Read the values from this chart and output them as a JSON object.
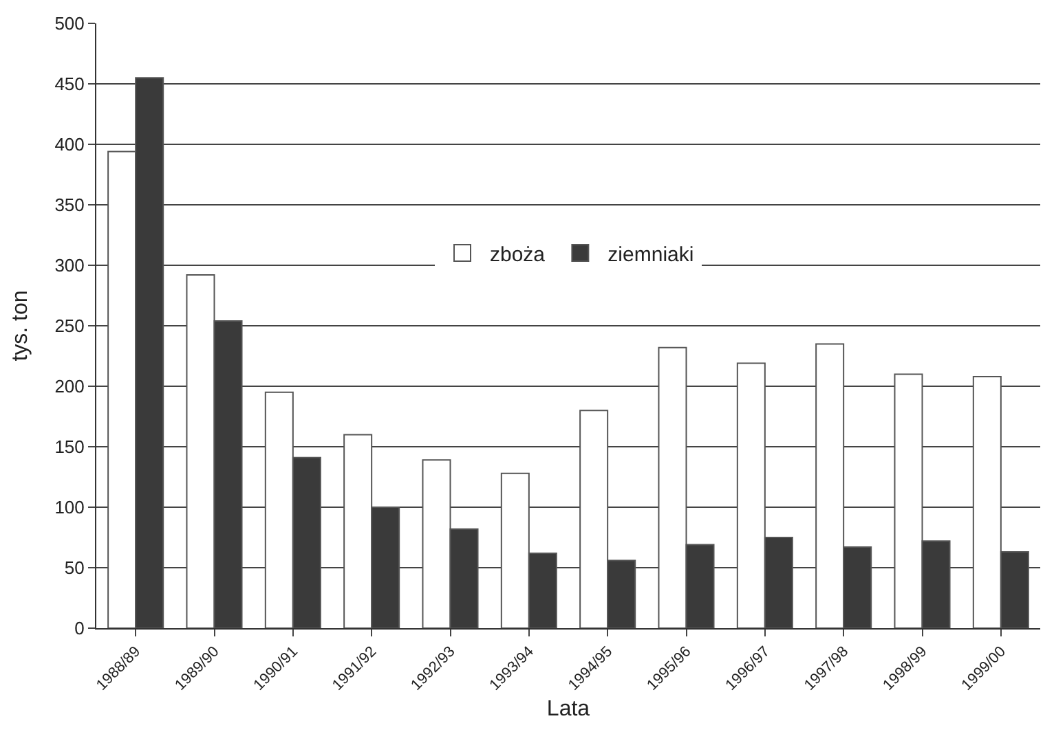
{
  "chart_data": {
    "type": "bar",
    "xlabel": "Lata",
    "ylabel": "tys. ton",
    "categories": [
      "1988/89",
      "1989/90",
      "1990/91",
      "1991/92",
      "1992/93",
      "1993/94",
      "1994/95",
      "1995/96",
      "1996/97",
      "1997/98",
      "1998/99",
      "1999/00"
    ],
    "series": [
      {
        "name": "zboża",
        "color": "#ffffff",
        "values": [
          394,
          292,
          195,
          160,
          139,
          128,
          180,
          232,
          219,
          235,
          210,
          208
        ]
      },
      {
        "name": "ziemniaki",
        "color": "#3a3a3a",
        "values": [
          455,
          254,
          141,
          100,
          82,
          62,
          56,
          69,
          75,
          67,
          72,
          63
        ]
      }
    ],
    "ylim": [
      0,
      500
    ],
    "yticks": [
      0,
      50,
      100,
      150,
      200,
      250,
      300,
      350,
      400,
      450,
      500
    ],
    "grid": "y",
    "legend": "top"
  }
}
